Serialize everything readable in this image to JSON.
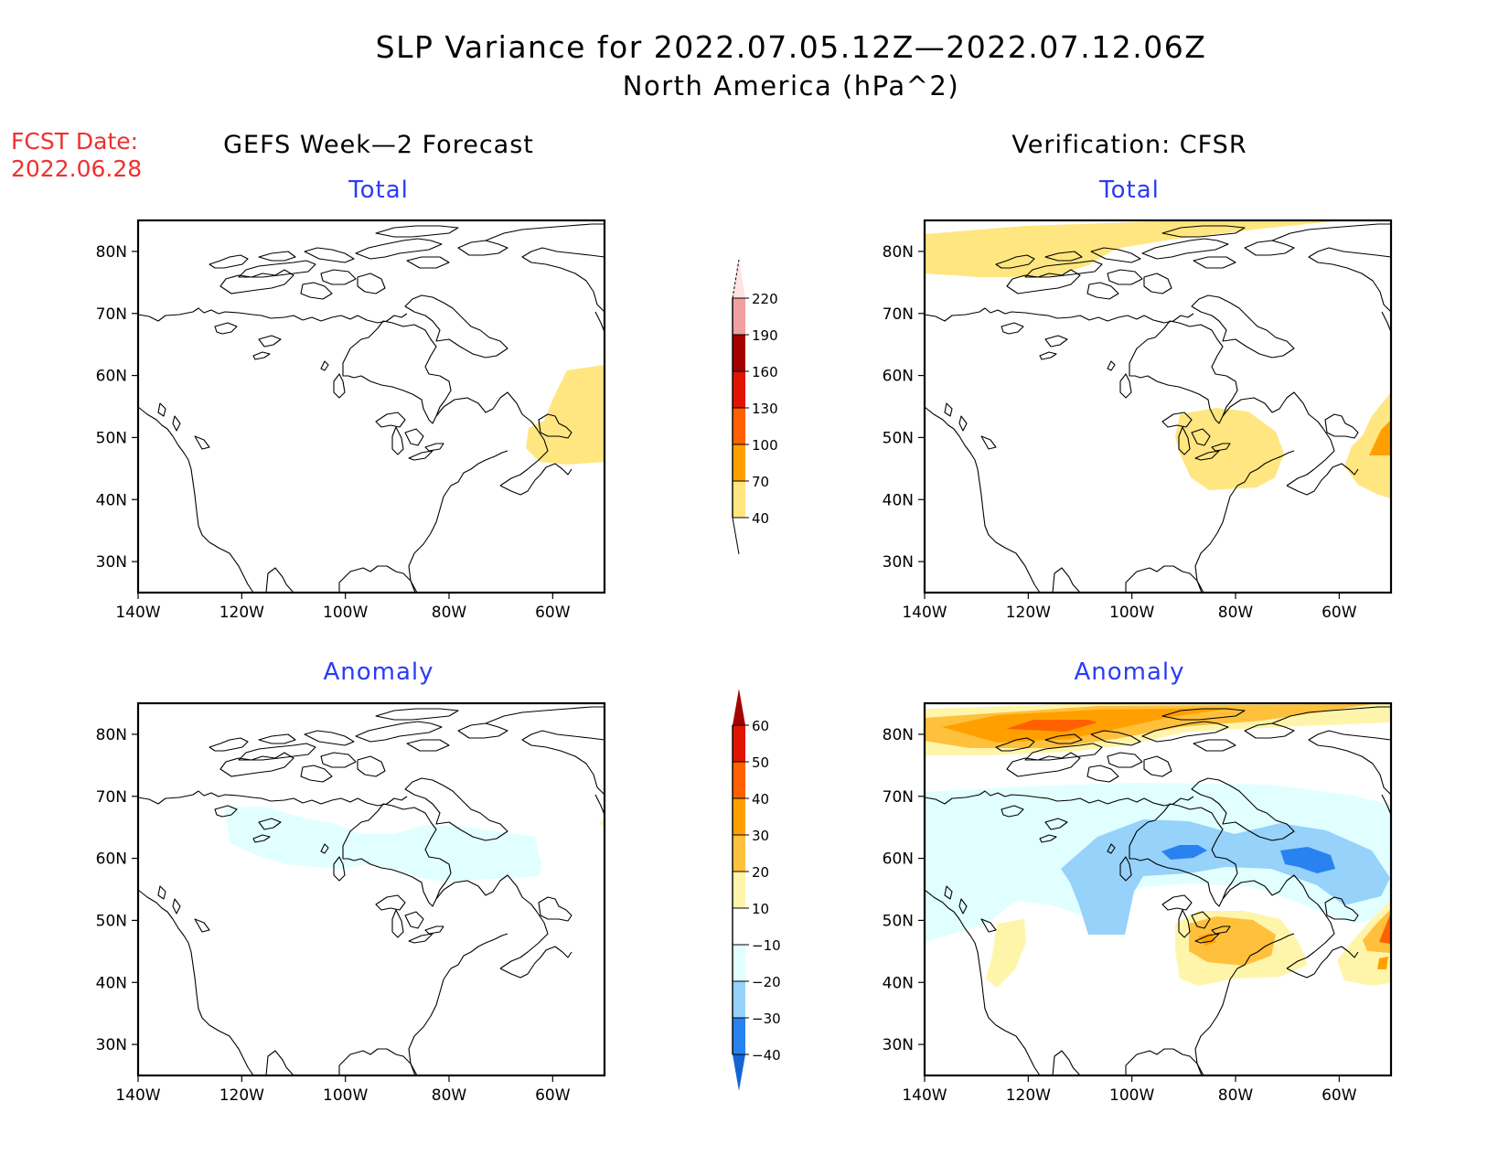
{
  "header": {
    "title": "SLP Variance for 2022.07.05.12Z—2022.07.12.06Z",
    "subtitle": "North America (hPa^2)",
    "fcst_label": "FCST Date:",
    "fcst_date": "2022.06.28",
    "left_column": "GEFS Week—2 Forecast",
    "right_column": "Verification: CFSR"
  },
  "colors": {
    "title": "#000000",
    "fcst": "#f03030",
    "subtitle_blue": "#2a3cf5"
  },
  "chart_data": [
    {
      "type": "heatmap",
      "title": "Total",
      "column": "GEFS Week-2 Forecast",
      "xlabel": "",
      "ylabel": "",
      "xlim": [
        -140,
        -50
      ],
      "ylim": [
        25,
        85
      ],
      "x_ticks": [
        "140W",
        "120W",
        "100W",
        "80W",
        "60W"
      ],
      "y_ticks": [
        "30N",
        "40N",
        "50N",
        "60N",
        "70N",
        "80N"
      ],
      "features": [
        {
          "region": "Newfoundland / Gulf of St. Lawrence",
          "level": "40-70"
        }
      ]
    },
    {
      "type": "heatmap",
      "title": "Total",
      "column": "Verification: CFSR",
      "xlim": [
        -140,
        -50
      ],
      "ylim": [
        25,
        85
      ],
      "x_ticks": [
        "140W",
        "120W",
        "100W",
        "80W",
        "60W"
      ],
      "y_ticks": [
        "30N",
        "40N",
        "50N",
        "60N",
        "70N",
        "80N"
      ],
      "features": [
        {
          "region": "Arctic Ocean north of Alaska",
          "level": "40-70"
        },
        {
          "region": "Great Lakes / Hudson Bay south",
          "level": "40-70"
        },
        {
          "region": "Newfoundland",
          "level": "40-70"
        },
        {
          "region": "East of Newfoundland",
          "level": "70-100"
        }
      ]
    },
    {
      "type": "heatmap",
      "title": "Anomaly",
      "column": "GEFS Week-2 Forecast",
      "xlim": [
        -140,
        -50
      ],
      "ylim": [
        25,
        85
      ],
      "x_ticks": [
        "140W",
        "120W",
        "100W",
        "80W",
        "60W"
      ],
      "y_ticks": [
        "30N",
        "40N",
        "50N",
        "60N",
        "70N",
        "80N"
      ],
      "features": [
        {
          "region": "Northern Canada / Hudson Bay",
          "level": "-20 to -10"
        }
      ]
    },
    {
      "type": "heatmap",
      "title": "Anomaly",
      "column": "Verification: CFSR",
      "xlim": [
        -140,
        -50
      ],
      "ylim": [
        25,
        85
      ],
      "x_ticks": [
        "140W",
        "120W",
        "100W",
        "80W",
        "60W"
      ],
      "y_ticks": [
        "30N",
        "40N",
        "50N",
        "60N",
        "70N",
        "80N"
      ],
      "features": [
        {
          "region": "Arctic Ocean",
          "level": "10 to 50"
        },
        {
          "region": "Canada broad",
          "level": "-20 to -10"
        },
        {
          "region": "Central Canada / Hudson Bay",
          "level": "-30 to -20"
        },
        {
          "region": "Hudson Bay cores",
          "level": "-40 to -30"
        },
        {
          "region": "Great Lakes",
          "level": "10 to 40"
        },
        {
          "region": "Pacific Northwest",
          "level": "10 to 20"
        },
        {
          "region": "Newfoundland",
          "level": "10 to 50"
        }
      ]
    }
  ],
  "colorbars": {
    "total": {
      "levels": [
        "40",
        "70",
        "100",
        "130",
        "160",
        "190",
        "220"
      ],
      "colors": [
        "#ffe680",
        "#ffa000",
        "#ff6000",
        "#e11400",
        "#a50000",
        "#f0a0a0",
        "#ffe2e2"
      ]
    },
    "anomaly": {
      "levels": [
        "-40",
        "-30",
        "-20",
        "-10",
        "10",
        "20",
        "30",
        "40",
        "50",
        "60"
      ],
      "colors": [
        "#1464d2",
        "#2882f0",
        "#96d2fa",
        "#e1ffff",
        "#ffffff",
        "#fff5aa",
        "#ffc03c",
        "#ffa000",
        "#ff6000",
        "#e11400",
        "#a50000"
      ]
    }
  }
}
